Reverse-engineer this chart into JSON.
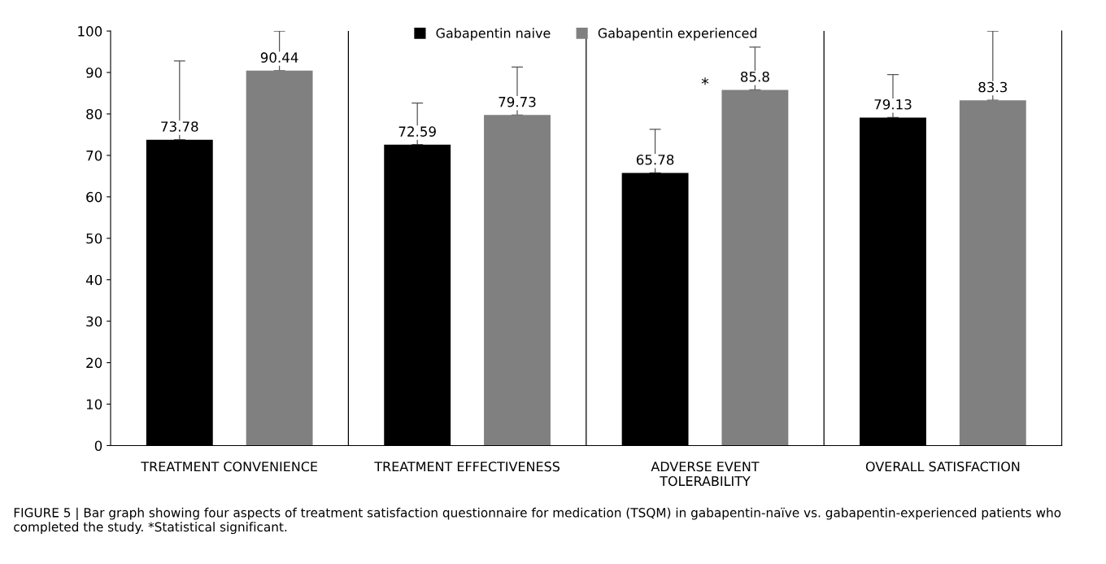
{
  "chart_data": {
    "type": "bar",
    "categories": [
      "TREATMENT CONVENIENCE",
      "TREATMENT EFFECTIVENESS",
      "ADVERSE EVENT\nTOLERABILITY",
      "OVERALL SATISFACTION"
    ],
    "series": [
      {
        "name": "Gabapentin naive",
        "color": "#000000",
        "values": [
          73.78,
          72.59,
          65.78,
          79.13
        ],
        "errors": [
          [
            73.78,
            92.8
          ],
          [
            72.59,
            82.6
          ],
          [
            65.78,
            76.3
          ],
          [
            79.13,
            89.5
          ]
        ]
      },
      {
        "name": "Gabapentin experienced",
        "color": "#808080",
        "values": [
          90.44,
          79.73,
          85.8,
          83.3
        ],
        "errors": [
          [
            90.44,
            100
          ],
          [
            79.73,
            91.3
          ],
          [
            85.8,
            96.1
          ],
          [
            83.3,
            100
          ]
        ]
      }
    ],
    "data_labels": true,
    "ylim": [
      0,
      100
    ],
    "yticks": [
      0,
      10,
      20,
      30,
      40,
      50,
      60,
      70,
      80,
      90,
      100
    ],
    "grid": false,
    "legend": "top",
    "annotations": [
      "*",
      "FIGURE 5 | Bar graph showing four aspects of treatment satisfaction questionnaire for medication (TSQM) in gabapentin-naïve vs. gabapentin-experienced patients who completed the study. *Statistical significant."
    ]
  }
}
